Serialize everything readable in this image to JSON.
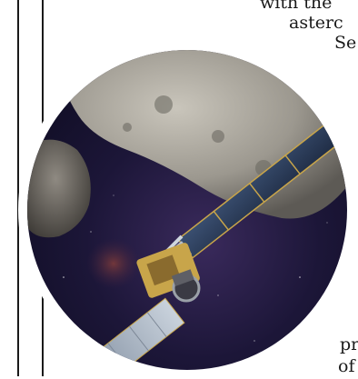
{
  "article": {
    "line1": "with the",
    "line2": "asterc",
    "line3": "Se",
    "line4": "pr",
    "line5": "of"
  },
  "image": {
    "subject": "spacecraft-approaching-asteroid",
    "colors": {
      "space": "#1c1638",
      "asteroid": "#a9a59c",
      "solar_panel": "#2e3f5f",
      "gold": "#c8a54a"
    }
  }
}
